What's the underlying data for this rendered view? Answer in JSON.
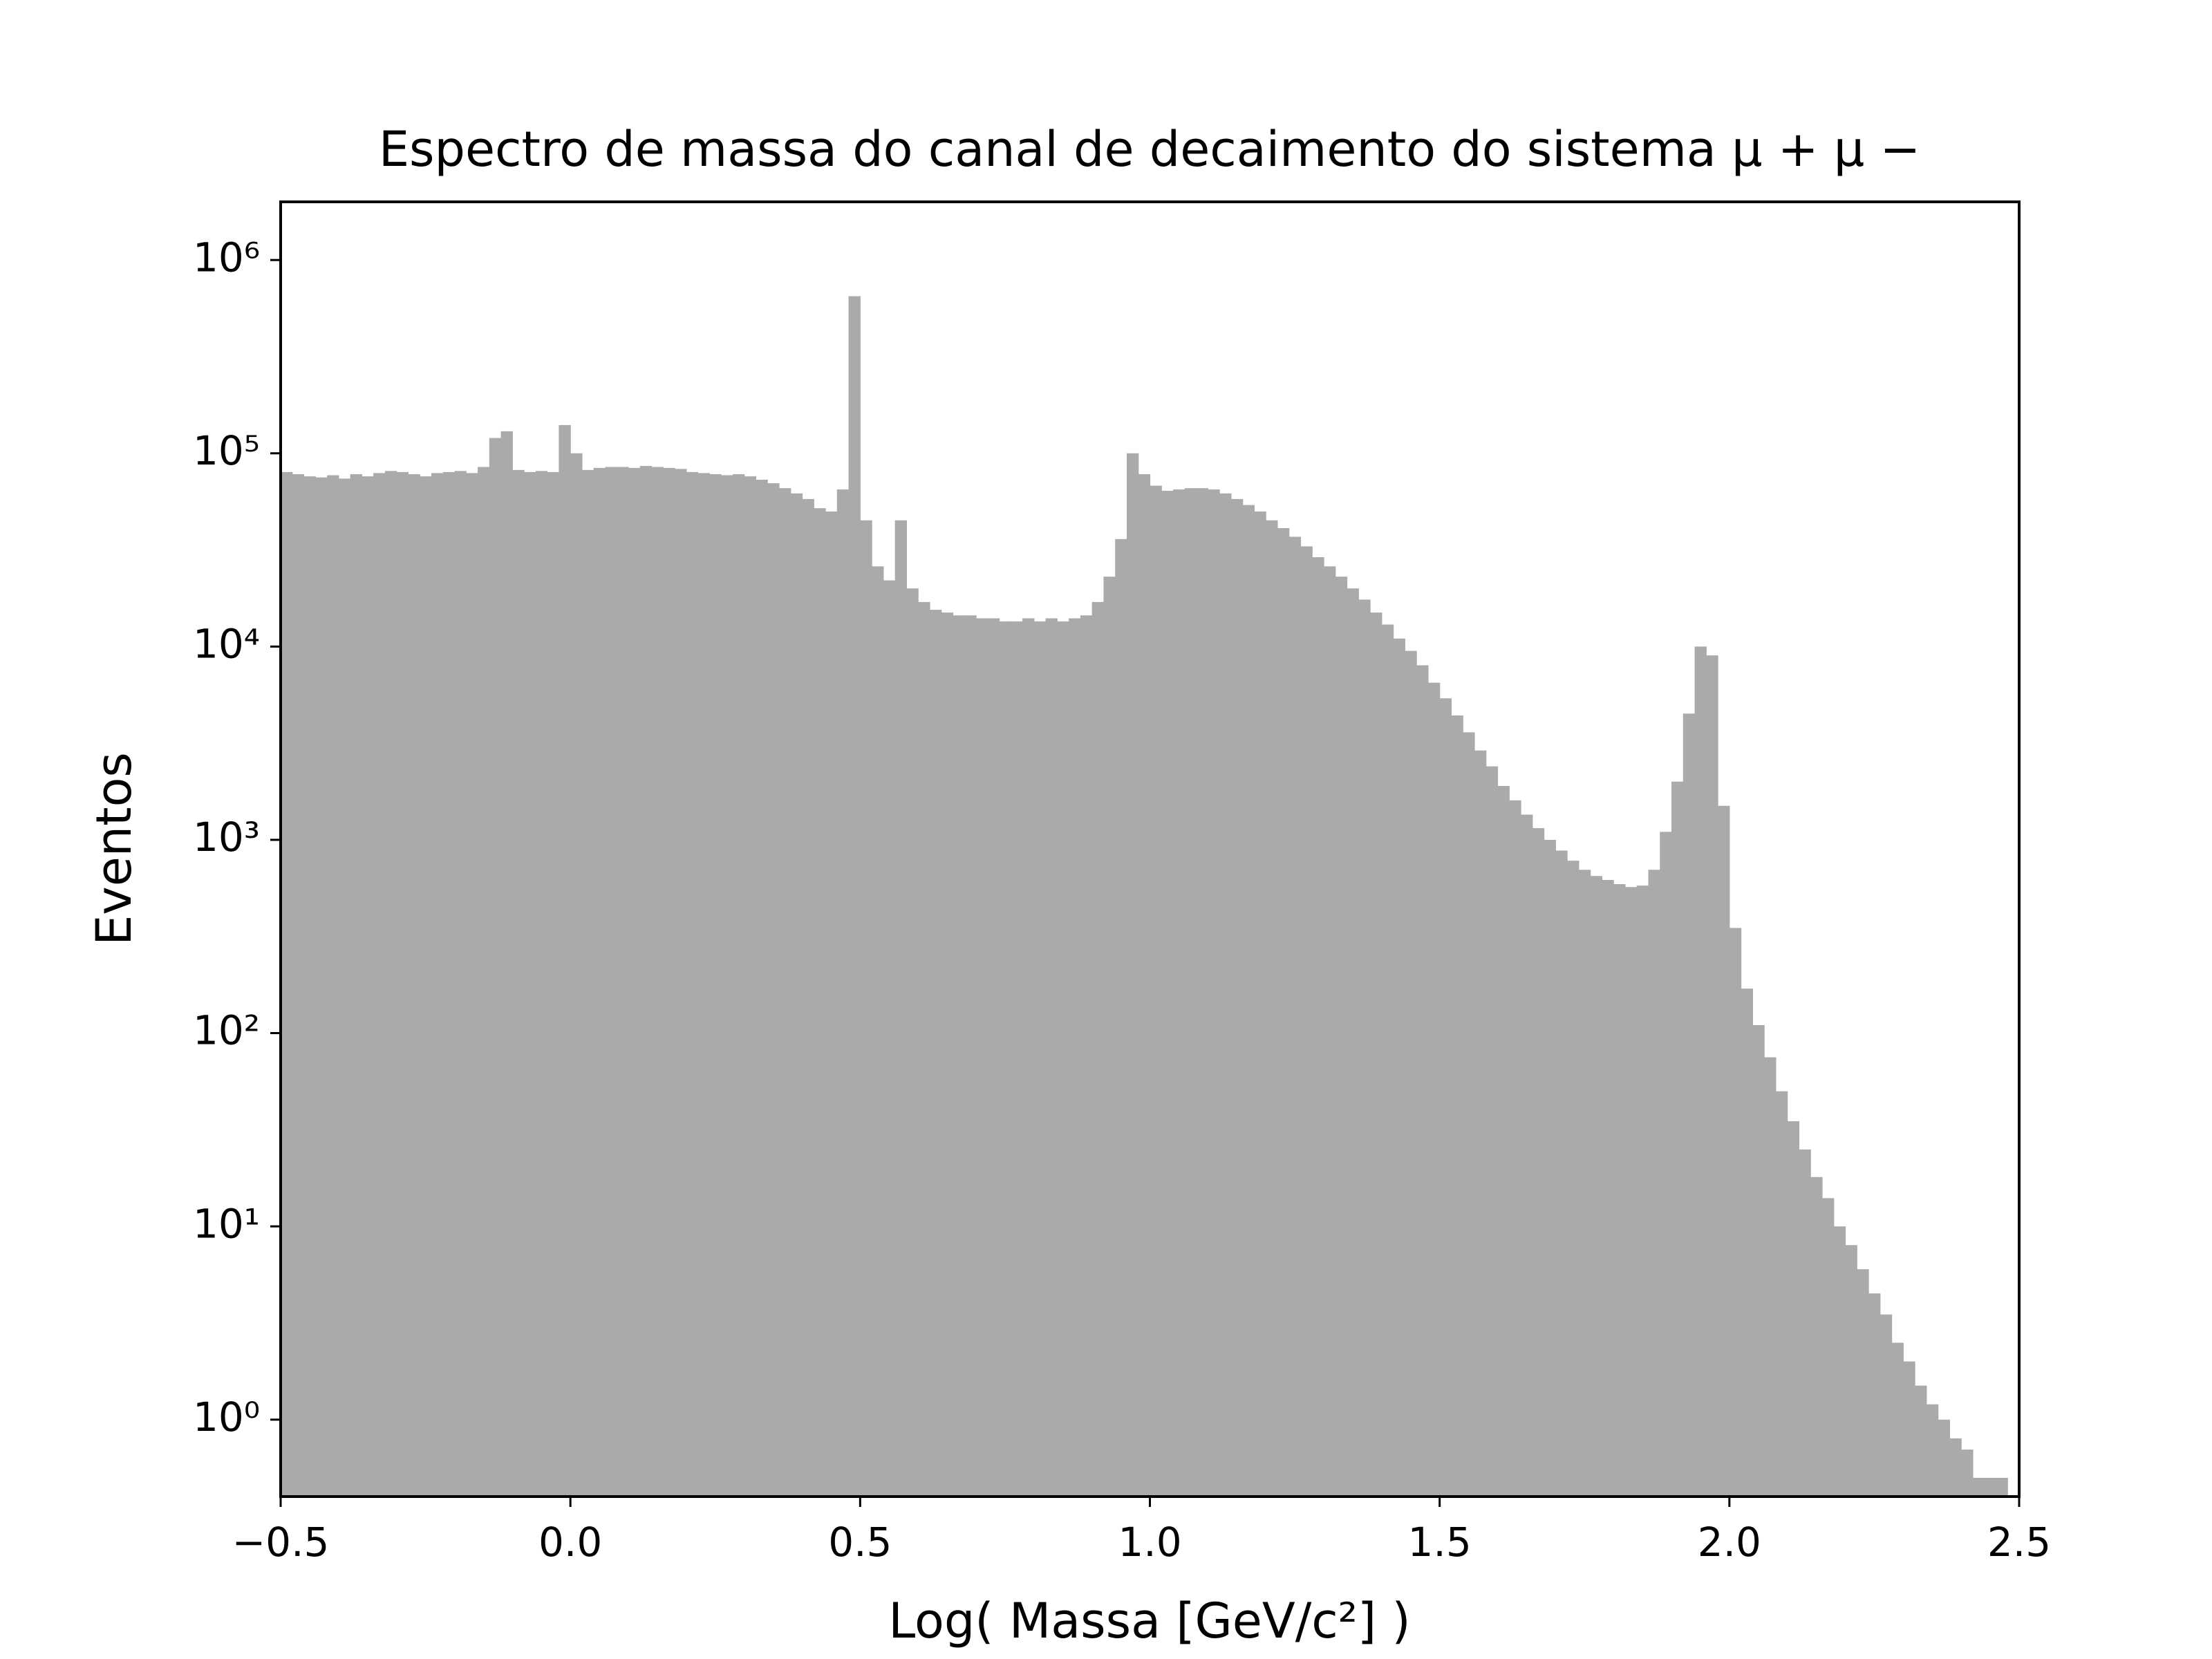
{
  "chart_data": {
    "type": "histogram",
    "title": "Espectro de massa do canal de decaimento do sistema μ + μ −",
    "x_label": "Log( Massa [GeV/c²] )",
    "y_label": "Eventos",
    "color": "#aaaaaa",
    "log_y": true,
    "xlim": [
      -0.5,
      2.5
    ],
    "ylim": [
      0.4,
      2000000
    ],
    "xticks": [
      {
        "value": -0.5,
        "label": "−0.5"
      },
      {
        "value": 0,
        "label": "0.0"
      },
      0.5,
      {
        "value": 1,
        "label": "1.0"
      },
      1.5,
      {
        "value": 2,
        "label": "2.0"
      },
      2.5
    ],
    "yticks": [
      {
        "value": 1,
        "label": "10⁰"
      },
      {
        "value": 10,
        "label": "10¹"
      },
      {
        "value": 100,
        "label": "10²"
      },
      {
        "value": 1000,
        "label": "10³"
      },
      {
        "value": 10000,
        "label": "10⁴"
      },
      {
        "value": 100000,
        "label": "10⁵"
      },
      {
        "value": 1000000,
        "label": "10⁶"
      }
    ],
    "bins": [
      -0.5,
      -0.48,
      -0.46,
      -0.44,
      -0.42,
      -0.4,
      -0.38,
      -0.36,
      -0.34,
      -0.32,
      -0.3,
      -0.28,
      -0.26,
      -0.24,
      -0.22,
      -0.2,
      -0.18,
      -0.16,
      -0.14,
      -0.12,
      -0.1,
      -0.08,
      -0.06,
      -0.04,
      -0.02,
      0,
      0.02,
      0.04,
      0.06,
      0.08,
      0.1,
      0.12,
      0.14,
      0.16,
      0.18,
      0.2,
      0.22,
      0.24,
      0.26,
      0.28,
      0.3,
      0.32,
      0.34,
      0.36,
      0.38,
      0.4,
      0.42,
      0.44,
      0.46,
      0.48,
      0.5,
      0.52,
      0.54,
      0.56,
      0.58,
      0.6,
      0.62,
      0.64,
      0.66,
      0.68,
      0.7,
      0.72,
      0.74,
      0.76,
      0.78,
      0.8,
      0.82,
      0.84,
      0.86,
      0.88,
      0.9,
      0.92,
      0.94,
      0.96,
      0.98,
      1,
      1.02,
      1.04,
      1.06,
      1.08,
      1.1,
      1.12,
      1.14,
      1.16,
      1.18,
      1.2,
      1.22,
      1.24,
      1.26,
      1.28,
      1.3,
      1.32,
      1.34,
      1.36,
      1.38,
      1.4,
      1.42,
      1.44,
      1.46,
      1.48,
      1.5,
      1.52,
      1.54,
      1.56,
      1.58,
      1.6,
      1.62,
      1.64,
      1.66,
      1.68,
      1.7,
      1.72,
      1.74,
      1.76,
      1.78,
      1.8,
      1.82,
      1.84,
      1.86,
      1.88,
      1.9,
      1.92,
      1.94,
      1.96,
      1.98,
      2,
      2.02,
      2.04,
      2.06,
      2.08,
      2.1,
      2.12,
      2.14,
      2.16,
      2.18,
      2.2,
      2.22,
      2.24,
      2.26,
      2.28,
      2.3,
      2.32,
      2.34,
      2.36,
      2.38,
      2.4,
      2.42,
      2.44,
      2.46,
      2.48,
      2.5
    ],
    "values": [
      80000,
      78000,
      76000,
      75000,
      77000,
      74000,
      78000,
      76000,
      79000,
      81000,
      80000,
      78000,
      76000,
      79000,
      80000,
      81000,
      79000,
      85000,
      120000,
      130000,
      82000,
      80000,
      81000,
      80000,
      140000,
      100000,
      82000,
      84000,
      85000,
      85000,
      84000,
      86000,
      85000,
      84000,
      83000,
      80000,
      79000,
      78000,
      77000,
      78000,
      76000,
      73000,
      70000,
      66000,
      62000,
      58000,
      52000,
      50000,
      65000,
      650000,
      45000,
      26000,
      22000,
      45000,
      20000,
      17000,
      15500,
      15000,
      14500,
      14500,
      14000,
      14000,
      13500,
      13500,
      14000,
      13500,
      14000,
      13500,
      14000,
      14500,
      17000,
      23000,
      36000,
      100000,
      78000,
      68000,
      64000,
      65000,
      66000,
      66000,
      65000,
      62000,
      58000,
      54000,
      50000,
      45000,
      41000,
      37000,
      33000,
      29000,
      26000,
      23000,
      20000,
      17500,
      15000,
      13000,
      11000,
      9500,
      8000,
      6500,
      5400,
      4400,
      3600,
      2900,
      2400,
      1900,
      1600,
      1350,
      1150,
      1000,
      880,
      780,
      700,
      650,
      620,
      590,
      570,
      580,
      700,
      1100,
      2000,
      4500,
      10000,
      9000,
      1500,
      350,
      170,
      110,
      75,
      50,
      35,
      25,
      18,
      14,
      10,
      8,
      6,
      4.5,
      3.5,
      2.5,
      2,
      1.5,
      1.2,
      1,
      0.8,
      0.7,
      0.5,
      0.5,
      0.5,
      0
    ]
  }
}
